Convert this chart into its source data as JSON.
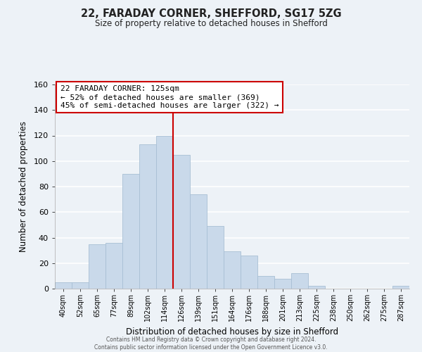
{
  "title_line1": "22, FARADAY CORNER, SHEFFORD, SG17 5ZG",
  "title_line2": "Size of property relative to detached houses in Shefford",
  "xlabel": "Distribution of detached houses by size in Shefford",
  "ylabel": "Number of detached properties",
  "bar_labels": [
    "40sqm",
    "52sqm",
    "65sqm",
    "77sqm",
    "89sqm",
    "102sqm",
    "114sqm",
    "126sqm",
    "139sqm",
    "151sqm",
    "164sqm",
    "176sqm",
    "188sqm",
    "201sqm",
    "213sqm",
    "225sqm",
    "238sqm",
    "250sqm",
    "262sqm",
    "275sqm",
    "287sqm"
  ],
  "bar_values": [
    5,
    5,
    35,
    36,
    90,
    113,
    120,
    105,
    74,
    49,
    29,
    26,
    10,
    8,
    12,
    2,
    0,
    0,
    0,
    0,
    2
  ],
  "bar_color": "#c9d9ea",
  "bar_edge_color": "#a8bfd4",
  "vline_x_index": 7,
  "vline_color": "#cc0000",
  "ylim": [
    0,
    160
  ],
  "yticks": [
    0,
    20,
    40,
    60,
    80,
    100,
    120,
    140,
    160
  ],
  "annotation_title": "22 FARADAY CORNER: 125sqm",
  "annotation_line1": "← 52% of detached houses are smaller (369)",
  "annotation_line2": "45% of semi-detached houses are larger (322) →",
  "annotation_box_edge": "#cc0000",
  "footer_line1": "Contains HM Land Registry data © Crown copyright and database right 2024.",
  "footer_line2": "Contains public sector information licensed under the Open Government Licence v3.0.",
  "background_color": "#edf2f7",
  "grid_color": "#ffffff"
}
